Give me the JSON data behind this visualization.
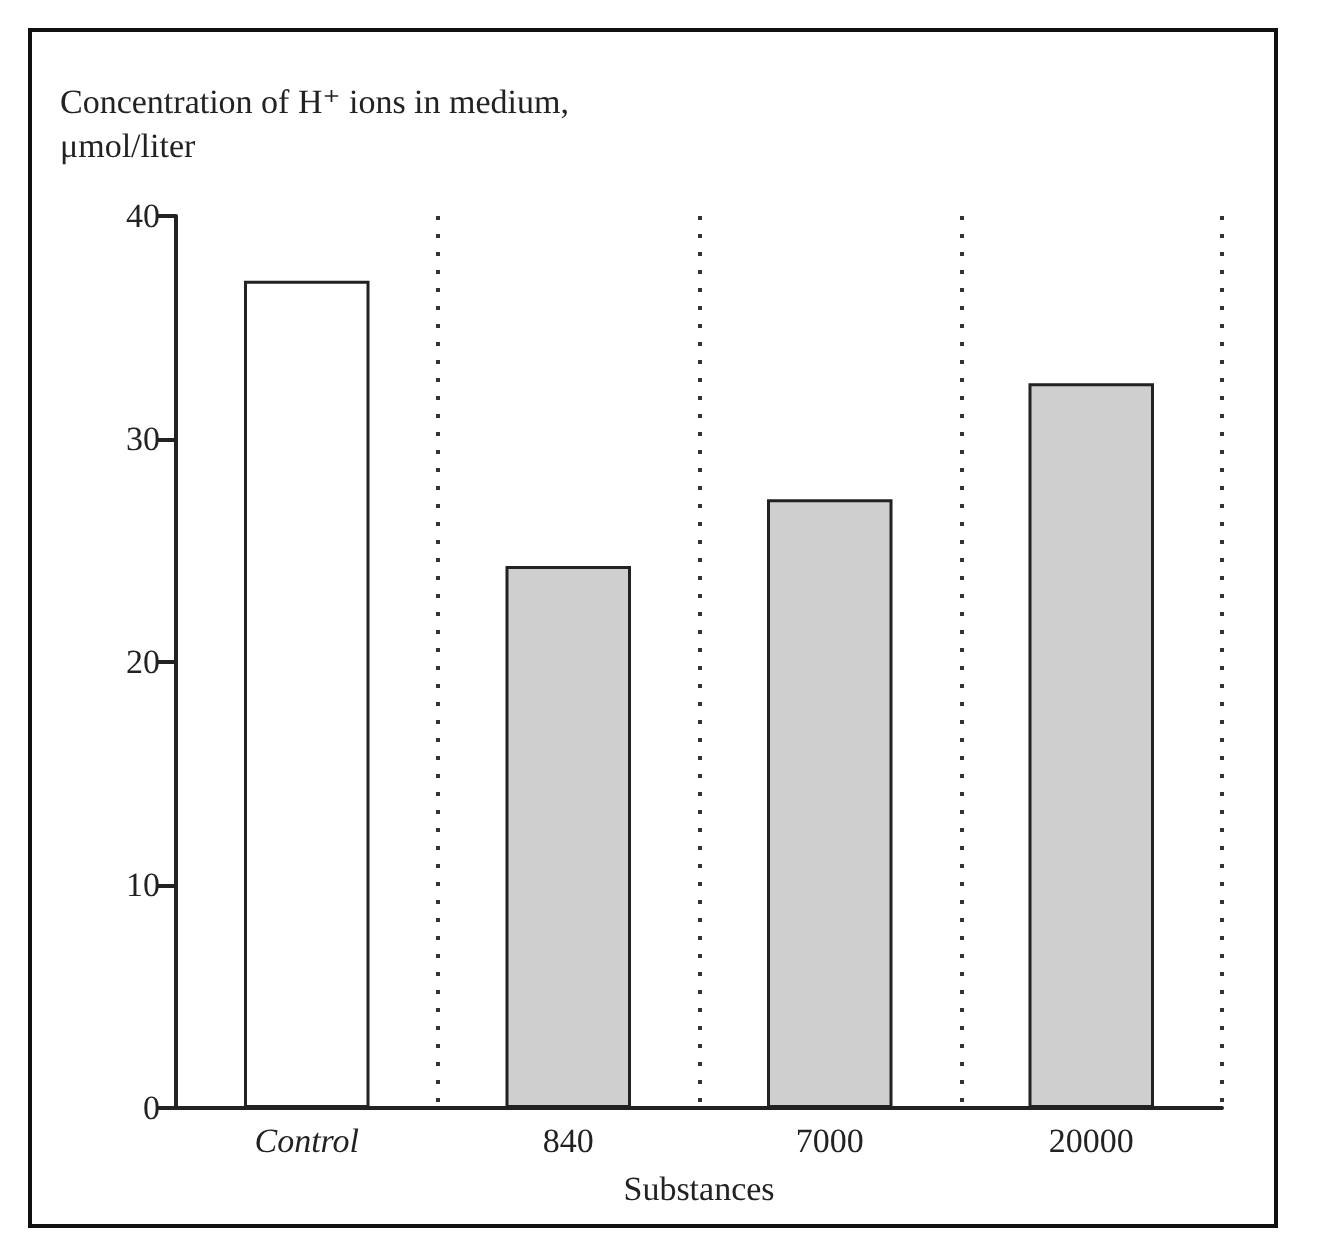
{
  "chart_data": {
    "type": "bar",
    "ylabel": "Concentration of H⁺ ions in medium,\nμmol/liter",
    "xlabel": "Substances",
    "categories": [
      "Control",
      "840",
      "7000",
      "20000"
    ],
    "values": [
      37.1,
      24.3,
      27.3,
      32.5
    ],
    "colors": [
      "#ffffff",
      "#cfcfcf",
      "#cfcfcf",
      "#cfcfcf"
    ],
    "ylim": [
      0,
      40
    ],
    "yticks": [
      0,
      10,
      20,
      30,
      40
    ],
    "grid": "x"
  }
}
